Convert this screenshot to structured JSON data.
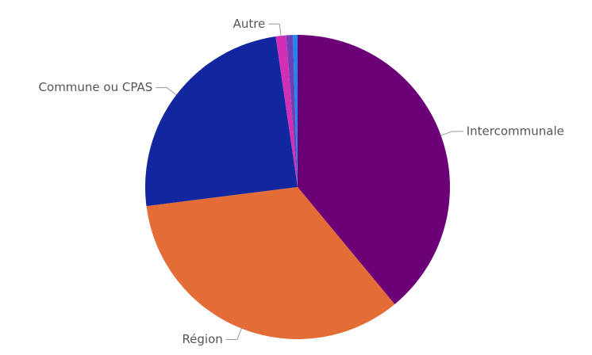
{
  "chart_data": {
    "type": "pie",
    "categories": [
      "Intercommunale",
      "Région",
      "Commune ou CPAS",
      "Autre",
      null,
      null
    ],
    "values": [
      39,
      34,
      24.7,
      1.1,
      0.7,
      0.5
    ],
    "colors": [
      "#6b0077",
      "#e46c37",
      "#1226a0",
      "#d12fb5",
      "#6f41b5",
      "#1e88f0"
    ]
  }
}
